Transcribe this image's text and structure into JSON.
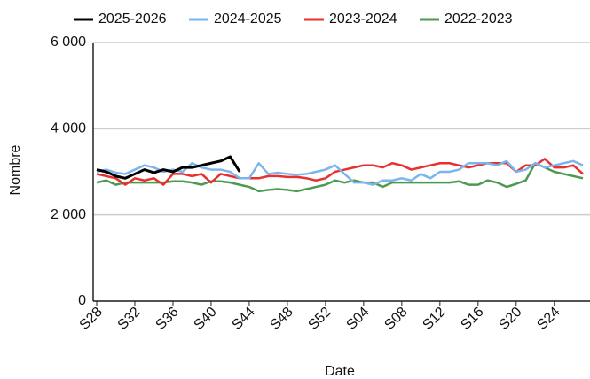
{
  "chart_data": {
    "type": "line",
    "x_label": "Date",
    "y_label": "Nombre",
    "categories": [
      "S28",
      null,
      null,
      null,
      "S32",
      null,
      null,
      null,
      "S36",
      null,
      null,
      null,
      "S40",
      null,
      null,
      null,
      "S44",
      null,
      null,
      null,
      "S48",
      null,
      null,
      null,
      "S52",
      null,
      null,
      null,
      "S04",
      null,
      null,
      null,
      "S08",
      null,
      null,
      null,
      "S12",
      null,
      null,
      null,
      "S16",
      null,
      null,
      null,
      "S20",
      null,
      null,
      null,
      "S24",
      null,
      null,
      null
    ],
    "series": [
      {
        "name": "2025-2026",
        "color": "#000000",
        "values": [
          3050,
          3000,
          2900,
          2850,
          2950,
          3050,
          2980,
          3050,
          3000,
          3100,
          3100,
          3150,
          3200,
          3250,
          3350,
          3000,
          null,
          null,
          null,
          null,
          null,
          null,
          null,
          null,
          null,
          null,
          null,
          null,
          null,
          null,
          null,
          null,
          null,
          null,
          null,
          null,
          null,
          null,
          null,
          null,
          null,
          null,
          null,
          null,
          null,
          null,
          null,
          null,
          null,
          null,
          null,
          null
        ]
      },
      {
        "name": "2024-2025",
        "color": "#7cb5ec",
        "values": [
          3000,
          3050,
          2980,
          2950,
          3050,
          3150,
          3100,
          3000,
          3050,
          3000,
          3200,
          3100,
          3050,
          3050,
          3000,
          2850,
          2850,
          3200,
          2950,
          2980,
          2950,
          2930,
          2950,
          3000,
          3050,
          3150,
          2950,
          2750,
          2750,
          2700,
          2800,
          2800,
          2850,
          2800,
          2950,
          2850,
          3000,
          3000,
          3050,
          3200,
          3200,
          3200,
          3150,
          3250,
          3000,
          3050,
          3200,
          3100,
          3150,
          3200,
          3250,
          3150
        ]
      },
      {
        "name": "2023-2024",
        "color": "#e8312f",
        "values": [
          2950,
          2900,
          2850,
          2700,
          2850,
          2800,
          2850,
          2700,
          2950,
          2950,
          2900,
          2950,
          2750,
          2950,
          2900,
          2850,
          2850,
          2850,
          2900,
          2900,
          2880,
          2880,
          2850,
          2800,
          2850,
          3000,
          3050,
          3100,
          3150,
          3150,
          3100,
          3200,
          3150,
          3050,
          3100,
          3150,
          3200,
          3200,
          3150,
          3100,
          3150,
          3200,
          3200,
          3200,
          3000,
          3150,
          3150,
          3300,
          3100,
          3100,
          3150,
          2950
        ]
      },
      {
        "name": "2022-2023",
        "color": "#4c9a52",
        "values": [
          2750,
          2800,
          2700,
          2750,
          2750,
          2750,
          2750,
          2750,
          2780,
          2780,
          2750,
          2700,
          2780,
          2780,
          2750,
          2700,
          2650,
          2550,
          2580,
          2600,
          2580,
          2550,
          2600,
          2650,
          2700,
          2800,
          2750,
          2800,
          2750,
          2750,
          2650,
          2750,
          2750,
          2750,
          2750,
          2750,
          2750,
          2750,
          2780,
          2700,
          2700,
          2800,
          2750,
          2650,
          2720,
          2800,
          3200,
          3100,
          3000,
          2950,
          2900,
          2850
        ]
      }
    ],
    "ylim": [
      0,
      6000
    ],
    "yticks": [
      {
        "value": 0,
        "label": "0"
      },
      {
        "value": 2000,
        "label": "2 000"
      },
      {
        "value": 4000,
        "label": "4 000"
      },
      {
        "value": 6000,
        "label": "6 000"
      }
    ],
    "grid": true,
    "legend": "top"
  }
}
